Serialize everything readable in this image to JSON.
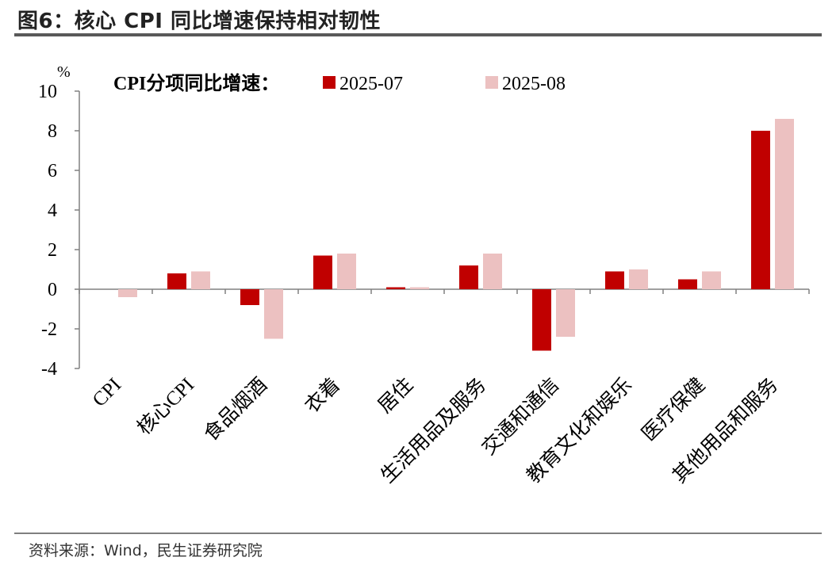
{
  "title": "图6：核心 CPI 同比增速保持相对韧性",
  "source": "资料来源：Wind，民生证券研究院",
  "chart_data": {
    "type": "bar",
    "unit_label": "%",
    "legend_title": "CPI分项同比增速：",
    "legend_position": "top",
    "categories": [
      "CPI",
      "核心CPI",
      "食品烟酒",
      "衣着",
      "居住",
      "生活用品及服务",
      "交通和通信",
      "教育文化和娱乐",
      "医疗保健",
      "其他用品和服务"
    ],
    "series": [
      {
        "name": "2025-07",
        "color": "#c00000",
        "values": [
          0.0,
          0.8,
          -0.8,
          1.7,
          0.1,
          1.2,
          -3.1,
          0.9,
          0.5,
          8.0
        ]
      },
      {
        "name": "2025-08",
        "color": "#ecc1c1",
        "values": [
          -0.4,
          0.9,
          -2.5,
          1.8,
          0.1,
          1.8,
          -2.4,
          1.0,
          0.9,
          8.6
        ]
      }
    ],
    "ylim": [
      -4,
      10
    ],
    "yticks": [
      "10",
      "8",
      "6",
      "4",
      "2",
      "0",
      "-2",
      "-4"
    ],
    "grid": false
  }
}
